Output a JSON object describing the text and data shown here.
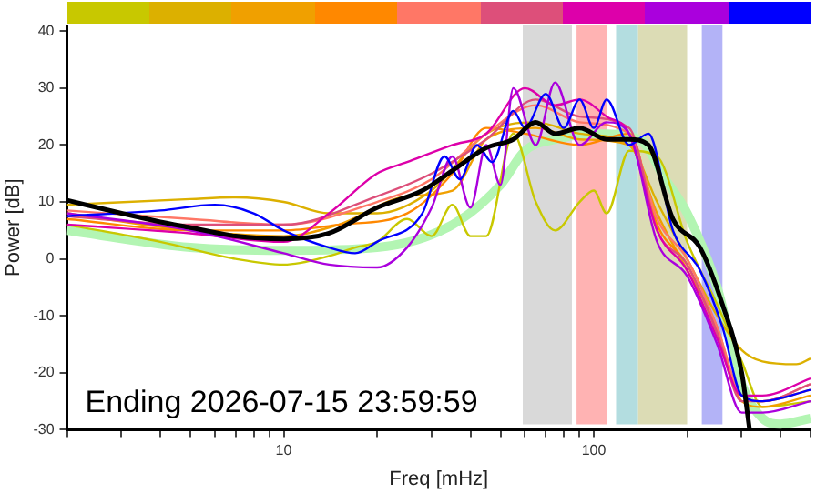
{
  "chart_data": {
    "type": "line",
    "xlabel": "Freq [mHz]",
    "ylabel": "Power [dB]",
    "log": "x",
    "grid": false,
    "legend": false,
    "marker": "none",
    "xlim": [
      2,
      500
    ],
    "ylim": [
      -30,
      41
    ],
    "xticks": [
      {
        "value": 2,
        "label": null
      },
      {
        "value": 3,
        "label": null
      },
      {
        "value": 4,
        "label": null
      },
      {
        "value": 5,
        "label": null
      },
      {
        "value": 6,
        "label": null
      },
      {
        "value": 7,
        "label": null
      },
      {
        "value": 8,
        "label": null
      },
      {
        "value": 9,
        "label": null
      },
      10,
      {
        "value": 20,
        "label": null
      },
      {
        "value": 30,
        "label": null
      },
      {
        "value": 40,
        "label": null
      },
      {
        "value": 50,
        "label": null
      },
      {
        "value": 60,
        "label": null
      },
      {
        "value": 70,
        "label": null
      },
      {
        "value": 80,
        "label": null
      },
      {
        "value": 90,
        "label": null
      },
      100,
      {
        "value": 200,
        "label": null
      },
      {
        "value": 300,
        "label": null
      },
      {
        "value": 400,
        "label": null
      },
      {
        "value": 500,
        "label": null
      }
    ],
    "yticks": [
      -30,
      -20,
      -10,
      0,
      10,
      20,
      30,
      40
    ],
    "bands": [
      {
        "axis": "x",
        "from": 59,
        "to": 85,
        "color": "#d9d9d9"
      },
      {
        "axis": "x",
        "from": 88,
        "to": 110,
        "color": "#ffb3b3"
      },
      {
        "axis": "x",
        "from": 118,
        "to": 139,
        "color": "#b3dde0"
      },
      {
        "axis": "x",
        "from": 139,
        "to": 200,
        "color": "#dcdcb5"
      },
      {
        "axis": "x",
        "from": 223,
        "to": 260,
        "color": "#b3b3f7"
      }
    ],
    "annotations": [
      "Ending 2026-07-15 23:59:59"
    ],
    "series": [
      {
        "color": "#b3f5b3",
        "x": [
          2,
          5,
          10,
          20,
          35,
          50,
          60,
          75,
          100,
          140,
          170,
          200,
          250,
          300,
          350,
          400,
          500
        ],
        "values": [
          5,
          2,
          1.5,
          2,
          6,
          13,
          19,
          21,
          22,
          21,
          14,
          8,
          -5,
          -22,
          -28,
          -29,
          -28
        ]
      },
      {
        "color": "#c8c800",
        "x": [
          2,
          4,
          7,
          10,
          14,
          17,
          20,
          25,
          30,
          35,
          40,
          45,
          55,
          65,
          75,
          90,
          100,
          110,
          130,
          160,
          200,
          250,
          300,
          350,
          500
        ],
        "values": [
          6,
          3,
          0,
          -1,
          0.5,
          2,
          3,
          7,
          4,
          9.5,
          4,
          4,
          22,
          10,
          5,
          10,
          12,
          8,
          19,
          18,
          3,
          -8,
          -18,
          -26,
          -25
        ]
      },
      {
        "color": "#dcb000",
        "x": [
          2,
          5,
          7,
          10,
          14,
          20,
          30,
          45,
          65,
          90,
          130,
          160,
          200,
          250,
          300,
          350,
          450,
          500
        ],
        "values": [
          9.5,
          10.5,
          10.8,
          10,
          8,
          8,
          12,
          22,
          24,
          22,
          20,
          10,
          0,
          -10,
          -16,
          -18,
          -18.5,
          -17.5
        ]
      },
      {
        "color": "#f0a000",
        "x": [
          2,
          5,
          10,
          15,
          25,
          35,
          45,
          65,
          90,
          130,
          160,
          200,
          250,
          300,
          350,
          500
        ],
        "values": [
          8,
          5,
          4,
          6,
          11,
          12,
          21,
          23,
          21,
          20,
          8,
          -2,
          -12,
          -25,
          -26,
          -24
        ]
      },
      {
        "color": "#ff8800",
        "x": [
          2,
          5,
          10,
          15,
          25,
          35,
          45,
          60,
          90,
          130,
          160,
          200,
          250,
          300,
          350,
          500
        ],
        "values": [
          7,
          5,
          5,
          6,
          8,
          15,
          23,
          22,
          20,
          22,
          6,
          -1,
          -13,
          -24,
          -25,
          -23
        ]
      },
      {
        "color": "#ff7766",
        "x": [
          2,
          5,
          10,
          20,
          30,
          45,
          65,
          90,
          130,
          160,
          200,
          250,
          300,
          350,
          500
        ],
        "values": [
          8.5,
          7,
          6,
          10,
          14,
          22,
          27,
          24,
          22,
          7,
          0,
          -12,
          -24,
          -25,
          -22
        ]
      },
      {
        "color": "#dd4f7a",
        "x": [
          2,
          5,
          10,
          20,
          30,
          45,
          65,
          90,
          130,
          160,
          200,
          250,
          300,
          350,
          500
        ],
        "values": [
          7.5,
          6,
          6,
          11,
          15,
          21,
          28,
          25,
          23,
          5,
          -1,
          -13,
          -25,
          -25,
          -22
        ]
      },
      {
        "color": "#dd00aa",
        "x": [
          2,
          5,
          10,
          14,
          20,
          25,
          35,
          45,
          60,
          75,
          90,
          110,
          130,
          160,
          200,
          250,
          300,
          350,
          500
        ],
        "values": [
          6,
          4.5,
          3,
          8,
          15,
          17,
          20,
          22,
          30,
          27,
          28,
          25,
          22,
          5,
          -2,
          -14,
          -24,
          -24,
          -21
        ]
      },
      {
        "color": "#aa00dd",
        "x": [
          2,
          5,
          10,
          14,
          20,
          25,
          30,
          35,
          40,
          45,
          50,
          55,
          65,
          75,
          90,
          110,
          130,
          160,
          200,
          250,
          300,
          350,
          500
        ],
        "values": [
          8,
          5,
          1,
          -1,
          -1.5,
          2,
          9,
          18,
          9,
          20,
          13,
          30,
          20,
          31,
          20,
          24,
          22,
          3,
          -3,
          -15,
          -27,
          -27,
          -25
        ]
      },
      {
        "color": "#0000ff",
        "x": [
          2,
          4,
          6,
          8,
          10,
          14,
          17,
          20,
          28,
          33,
          37,
          42,
          47,
          55,
          60,
          70,
          80,
          90,
          100,
          110,
          130,
          150,
          180,
          220,
          260,
          300,
          350,
          500
        ],
        "values": [
          7.5,
          8.5,
          9.5,
          8,
          5,
          2,
          1,
          3,
          8,
          18,
          14,
          20,
          17,
          26,
          23,
          29,
          23,
          28,
          23,
          28,
          20,
          22,
          5,
          -2,
          -12,
          -24,
          -25,
          -23
        ]
      },
      {
        "color": "#000000",
        "x": [
          2,
          3,
          4,
          5,
          7,
          10,
          14,
          20,
          28,
          35,
          45,
          55,
          65,
          75,
          90,
          110,
          130,
          150,
          180,
          220,
          260,
          300,
          318
        ],
        "values": [
          10.3,
          8,
          6.5,
          5.5,
          4,
          3.5,
          4.5,
          9,
          12,
          15.5,
          19.5,
          21,
          24,
          22,
          23,
          21,
          21,
          20,
          7,
          2,
          -8,
          -20,
          -30
        ]
      }
    ]
  }
}
